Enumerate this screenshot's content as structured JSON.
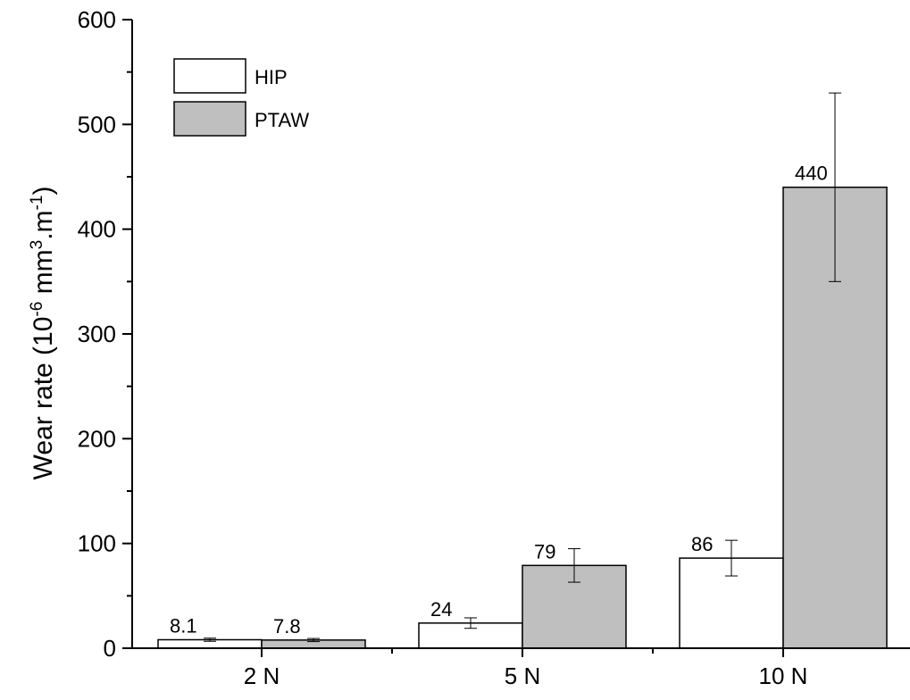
{
  "chart_data": {
    "type": "bar",
    "categories": [
      "2 N",
      "5 N",
      "10 N"
    ],
    "series": [
      {
        "name": "HIP",
        "values": [
          8.1,
          24,
          86
        ],
        "errors": [
          1.5,
          5,
          17
        ],
        "data_labels": [
          "8.1",
          "24",
          "86"
        ],
        "color": "#ffffff"
      },
      {
        "name": "PTAW",
        "values": [
          7.8,
          79,
          440
        ],
        "errors": [
          1.5,
          16,
          90
        ],
        "data_labels": [
          "7.8",
          "79",
          "440"
        ],
        "color": "#bfbfbf"
      }
    ],
    "title": "",
    "xlabel": "",
    "ylabel": "Wear rate (10",
    "ylabel_sup1": "-6",
    "ylabel_mid": " mm",
    "ylabel_sup2": "3",
    "ylabel_mid2": ".m",
    "ylabel_sup3": "-1",
    "ylabel_end": ")",
    "ylim": [
      0,
      600
    ],
    "yticks": [
      0,
      100,
      200,
      300,
      400,
      500,
      600
    ],
    "grid": false,
    "legend_position": "top-left"
  }
}
